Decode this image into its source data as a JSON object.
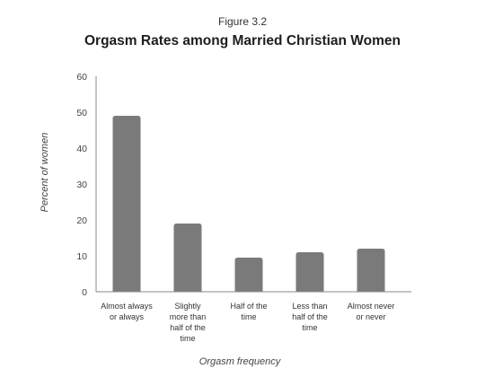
{
  "figure_label": "Figure 3.2",
  "chart_data": {
    "type": "bar",
    "title": "Orgasm Rates among Married Christian Women",
    "xlabel": "Orgasm frequency",
    "ylabel": "Percent of women",
    "ylim": [
      0,
      60
    ],
    "yticks": [
      0,
      10,
      20,
      30,
      40,
      50,
      60
    ],
    "grid": false,
    "categories": [
      [
        "Almost always",
        "or always"
      ],
      [
        "Slightly",
        "more than",
        "half of the",
        "time"
      ],
      [
        "Half of the",
        "time"
      ],
      [
        "Less than",
        "half of the",
        "time"
      ],
      [
        "Almost never",
        "or never"
      ]
    ],
    "values": [
      49,
      19,
      9.5,
      11,
      12
    ],
    "bar_color": "#7a7a7a"
  }
}
